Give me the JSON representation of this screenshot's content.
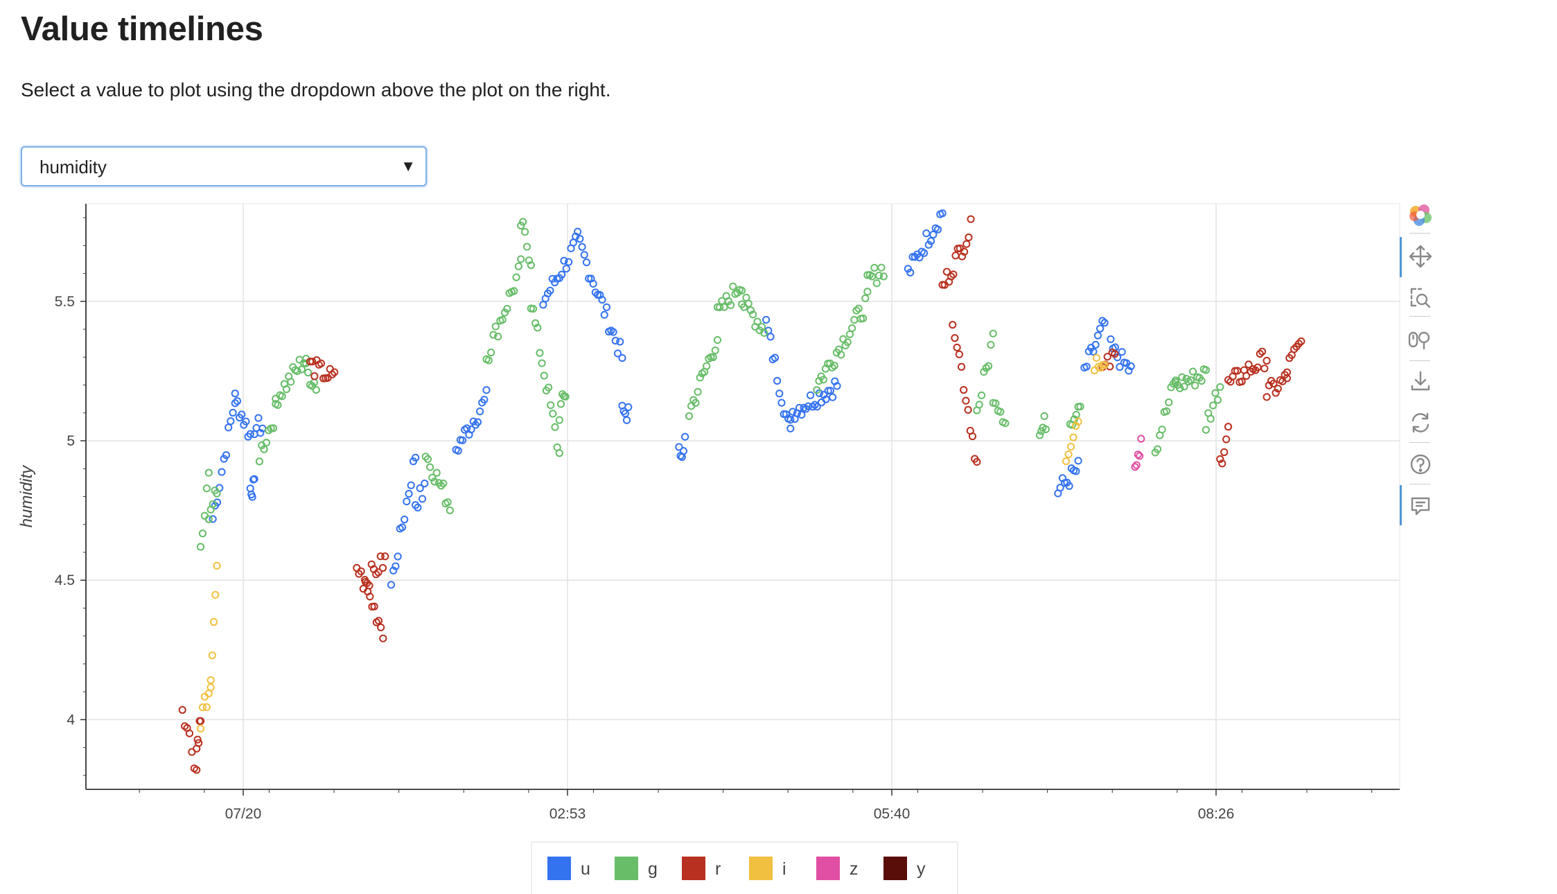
{
  "page": {
    "title": "Value timelines",
    "description": "Select a value to plot using the dropdown above the plot on the right."
  },
  "selector": {
    "selected": "humidity"
  },
  "toolbar": {
    "icons": [
      "bokeh-logo-icon",
      "pan-icon",
      "box-zoom-icon",
      "wheel-zoom-icon",
      "save-icon",
      "reset-icon",
      "help-icon",
      "hover-icon"
    ]
  },
  "colors": {
    "u": "#3473f0",
    "g": "#67bd68",
    "r": "#b8301f",
    "i": "#f1c040",
    "z": "#e04fa3",
    "y": "#5a0e0a",
    "grid": "#e2e2e2",
    "axis": "#333333"
  },
  "chart_data": {
    "type": "scatter",
    "xlabel": "",
    "ylabel": "humidity",
    "xticks": [
      "07/20",
      "02:53",
      "05:40",
      "08:26"
    ],
    "yticks": [
      "4",
      "4.5",
      "5",
      "5.5"
    ],
    "ylim": [
      3.75,
      5.85
    ],
    "legend": {
      "placement": "bottom-center",
      "entries": [
        "u",
        "g",
        "r",
        "i",
        "z",
        "y"
      ]
    },
    "series": [
      {
        "name": "u",
        "segments": [
          {
            "x": [
              -1.5,
              -0.4
            ],
            "y": [
              4.72,
              5.15
            ]
          },
          {
            "x": [
              -0.4,
              0.35
            ],
            "y": [
              5.15,
              5.02
            ]
          },
          {
            "x": [
              0.35,
              0.55
            ],
            "y": [
              4.83,
              4.83
            ]
          },
          {
            "x": [
              0.55,
              0.95
            ],
            "y": [
              5.05,
              5.05
            ]
          },
          {
            "x": [
              7.3,
              8.5
            ],
            "y": [
              4.48,
              4.95
            ]
          },
          {
            "x": [
              8.5,
              8.95
            ],
            "y": [
              4.78,
              4.82
            ]
          },
          {
            "x": [
              10.5,
              12.0
            ],
            "y": [
              4.97,
              5.15
            ]
          },
          {
            "x": [
              14.8,
              16.4
            ],
            "y": [
              5.5,
              5.7
            ]
          },
          {
            "x": [
              16.5,
              18.7
            ],
            "y": [
              5.72,
              5.3
            ]
          },
          {
            "x": [
              18.7,
              19.0
            ],
            "y": [
              5.1,
              5.1
            ]
          },
          {
            "x": [
              21.5,
              21.8
            ],
            "y": [
              4.95,
              5.0
            ]
          },
          {
            "x": [
              25.8,
              27.0
            ],
            "y": [
              5.42,
              5.02
            ]
          },
          {
            "x": [
              27.0,
              29.3
            ],
            "y": [
              5.1,
              5.2
            ]
          },
          {
            "x": [
              32.8,
              34.5
            ],
            "y": [
              5.6,
              5.82
            ]
          },
          {
            "x": [
              40.2,
              41.2
            ],
            "y": [
              4.82,
              4.9
            ]
          },
          {
            "x": [
              41.5,
              42.5
            ],
            "y": [
              5.25,
              5.42
            ]
          },
          {
            "x": [
              42.8,
              43.8
            ],
            "y": [
              5.33,
              5.25
            ]
          }
        ]
      },
      {
        "name": "g",
        "segments": [
          {
            "x": [
              -2.1,
              -1.7
            ],
            "y": [
              4.6,
              4.87
            ]
          },
          {
            "x": [
              -1.7,
              -1.3
            ],
            "y": [
              4.75,
              4.8
            ]
          },
          {
            "x": [
              0.8,
              1.6
            ],
            "y": [
              4.95,
              5.1
            ]
          },
          {
            "x": [
              1.6,
              3.1
            ],
            "y": [
              5.15,
              5.3
            ]
          },
          {
            "x": [
              3.1,
              3.6
            ],
            "y": [
              5.25,
              5.2
            ]
          },
          {
            "x": [
              9.0,
              10.2
            ],
            "y": [
              4.95,
              4.77
            ]
          },
          {
            "x": [
              12.0,
              13.7
            ],
            "y": [
              5.3,
              5.62
            ]
          },
          {
            "x": [
              13.7,
              14.2
            ],
            "y": [
              5.78,
              5.65
            ]
          },
          {
            "x": [
              14.2,
              15.6
            ],
            "y": [
              5.5,
              4.95
            ]
          },
          {
            "x": [
              15.6,
              15.9
            ],
            "y": [
              5.1,
              5.17
            ]
          },
          {
            "x": [
              22.0,
              23.4
            ],
            "y": [
              5.1,
              5.37
            ]
          },
          {
            "x": [
              23.4,
              24.6
            ],
            "y": [
              5.45,
              5.57
            ]
          },
          {
            "x": [
              24.6,
              25.7
            ],
            "y": [
              5.5,
              5.4
            ]
          },
          {
            "x": [
              28.3,
              30.8
            ],
            "y": [
              5.2,
              5.5
            ]
          },
          {
            "x": [
              30.8,
              31.6
            ],
            "y": [
              5.57,
              5.62
            ]
          },
          {
            "x": [
              36.2,
              37.0
            ],
            "y": [
              5.1,
              5.37
            ]
          },
          {
            "x": [
              37.0,
              37.6
            ],
            "y": [
              5.17,
              5.08
            ]
          },
          {
            "x": [
              39.3,
              39.6
            ],
            "y": [
              5.02,
              5.07
            ]
          },
          {
            "x": [
              40.8,
              41.3
            ],
            "y": [
              5.07,
              5.15
            ]
          },
          {
            "x": [
              45.0,
              46.0
            ],
            "y": [
              4.97,
              5.22
            ]
          },
          {
            "x": [
              46.0,
              47.5
            ],
            "y": [
              5.2,
              5.24
            ]
          },
          {
            "x": [
              47.5,
              48.2
            ],
            "y": [
              5.06,
              5.2
            ]
          }
        ]
      },
      {
        "name": "r",
        "segments": [
          {
            "x": [
              -3.0,
              -2.3
            ],
            "y": [
              4.05,
              3.82
            ]
          },
          {
            "x": [
              -2.3,
              -2.1
            ],
            "y": [
              3.9,
              4.0
            ]
          },
          {
            "x": [
              3.3,
              4.5
            ],
            "y": [
              5.27,
              5.22
            ]
          },
          {
            "x": [
              5.6,
              6.9
            ],
            "y": [
              4.55,
              4.32
            ]
          },
          {
            "x": [
              6.0,
              7.0
            ],
            "y": [
              4.5,
              4.57
            ]
          },
          {
            "x": [
              34.5,
              35.9
            ],
            "y": [
              5.55,
              5.76
            ]
          },
          {
            "x": [
              35.0,
              36.2
            ],
            "y": [
              5.45,
              4.92
            ]
          },
          {
            "x": [
              42.4,
              43.0
            ],
            "y": [
              5.25,
              5.3
            ]
          },
          {
            "x": [
              48.2,
              48.6
            ],
            "y": [
              4.92,
              5.05
            ]
          },
          {
            "x": [
              48.6,
              50.5
            ],
            "y": [
              5.2,
              5.3
            ]
          },
          {
            "x": [
              50.5,
              51.5
            ],
            "y": [
              5.17,
              5.22
            ]
          },
          {
            "x": [
              51.5,
              52.2
            ],
            "y": [
              5.26,
              5.35
            ]
          }
        ]
      },
      {
        "name": "i",
        "segments": [
          {
            "x": [
              -2.1,
              -1.6
            ],
            "y": [
              4.0,
              4.12
            ]
          },
          {
            "x": [
              -1.6,
              -1.3
            ],
            "y": [
              4.15,
              4.57
            ]
          },
          {
            "x": [
              40.6,
              41.2
            ],
            "y": [
              4.95,
              5.08
            ]
          },
          {
            "x": [
              42.0,
              42.5
            ],
            "y": [
              5.28,
              5.3
            ]
          }
        ]
      },
      {
        "name": "z",
        "segments": [
          {
            "x": [
              44.0,
              44.3
            ],
            "y": [
              4.9,
              5.0
            ]
          }
        ]
      },
      {
        "name": "y",
        "segments": []
      }
    ]
  }
}
